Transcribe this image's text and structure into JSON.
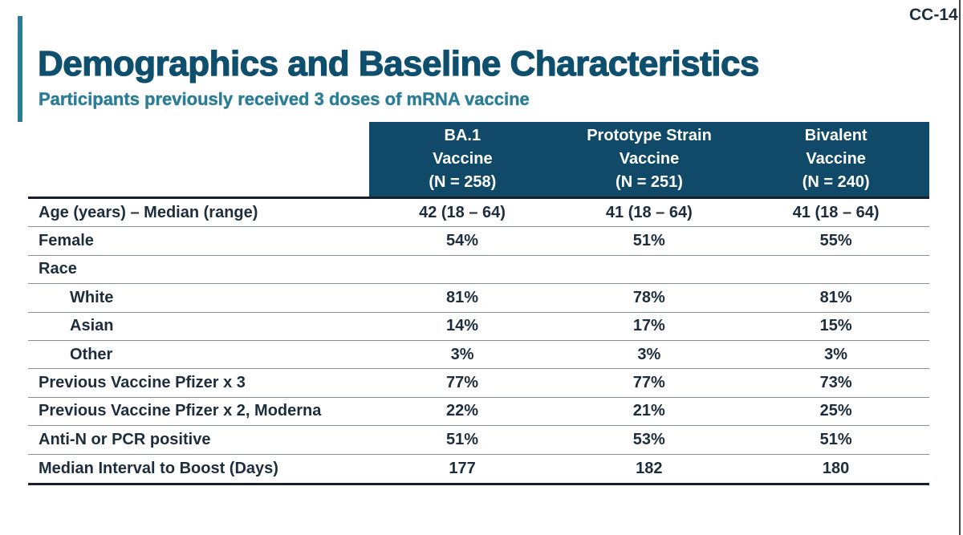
{
  "slide": {
    "code": "CC-14",
    "title": "Demographics and Baseline Characteristics",
    "subtitle": "Participants previously received 3 doses of mRNA vaccine"
  },
  "colors": {
    "header_bg": "#104a68",
    "title_text": "#0f4f6e",
    "subtitle_text": "#2b7d96",
    "accent_bar": "#2b7d96",
    "body_text": "#1e2d3c",
    "thin_rule": "#878f96",
    "thick_rule": "#16212d"
  },
  "table": {
    "columns": [
      {
        "header": "BA.1\nVaccine\n(N = 258)"
      },
      {
        "header": "Prototype Strain\nVaccine\n(N = 251)"
      },
      {
        "header": "Bivalent\nVaccine\n(N = 240)"
      }
    ],
    "rows": [
      {
        "label": "Age (years) – Median (range)",
        "indent": false,
        "values": [
          "42 (18 – 64)",
          "41 (18 – 64)",
          "41 (18 – 64)"
        ]
      },
      {
        "label": "Female",
        "indent": false,
        "values": [
          "54%",
          "51%",
          "55%"
        ]
      },
      {
        "label": "Race",
        "indent": false,
        "values": [
          "",
          "",
          ""
        ]
      },
      {
        "label": "White",
        "indent": true,
        "values": [
          "81%",
          "78%",
          "81%"
        ]
      },
      {
        "label": "Asian",
        "indent": true,
        "values": [
          "14%",
          "17%",
          "15%"
        ]
      },
      {
        "label": "Other",
        "indent": true,
        "values": [
          "3%",
          "3%",
          "3%"
        ]
      },
      {
        "label": "Previous Vaccine Pfizer x 3",
        "indent": false,
        "values": [
          "77%",
          "77%",
          "73%"
        ]
      },
      {
        "label": "Previous Vaccine Pfizer x 2, Moderna",
        "indent": false,
        "values": [
          "22%",
          "21%",
          "25%"
        ]
      },
      {
        "label": "Anti-N or PCR positive",
        "indent": false,
        "values": [
          "51%",
          "53%",
          "51%"
        ]
      },
      {
        "label": "Median Interval to Boost (Days)",
        "indent": false,
        "values": [
          "177",
          "182",
          "180"
        ]
      }
    ]
  }
}
